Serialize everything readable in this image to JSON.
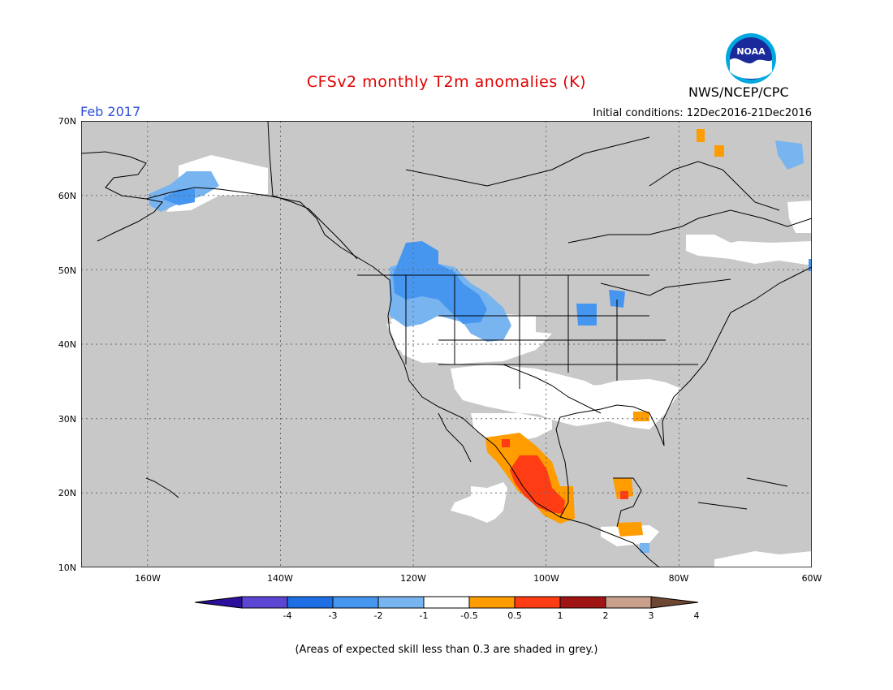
{
  "header": {
    "title": "CFSv2 monthly T2m anomalies (K)",
    "valid_month": "Feb 2017",
    "initial_conditions": "Initial conditions: 12Dec2016-21Dec2016",
    "agency": "NWS/NCEP/CPC",
    "logo_text": "NOAA"
  },
  "map": {
    "lon_range": [
      -170,
      -60
    ],
    "lat_range": [
      10,
      70
    ],
    "lat_labels": [
      "70N",
      "60N",
      "50N",
      "40N",
      "30N",
      "20N",
      "10N"
    ],
    "lon_labels": [
      "160W",
      "140W",
      "120W",
      "100W",
      "80W",
      "60W"
    ],
    "background_meaning": "grey",
    "colors": {
      "grey": "#c8c8c8",
      "white": "#ffffff",
      "light_blue": "#78b4f0",
      "mid_blue": "#4696f0",
      "orange": "#ff9c00",
      "red_orange": "#ff3c14"
    }
  },
  "colorbar": {
    "labels": [
      "-4",
      "-3",
      "-2",
      "-1",
      "-0.5",
      "0.5",
      "1",
      "2",
      "3",
      "4"
    ],
    "colors": [
      "#2d0f9e",
      "#5a46d2",
      "#1e6ee6",
      "#4696f0",
      "#78b4f0",
      "#ffffff",
      "#ff9c00",
      "#ff3c14",
      "#a01414",
      "#c8a08c",
      "#6e4632"
    ]
  },
  "footnote": "(Areas of expected skill less than 0.3 are shaded in grey.)"
}
